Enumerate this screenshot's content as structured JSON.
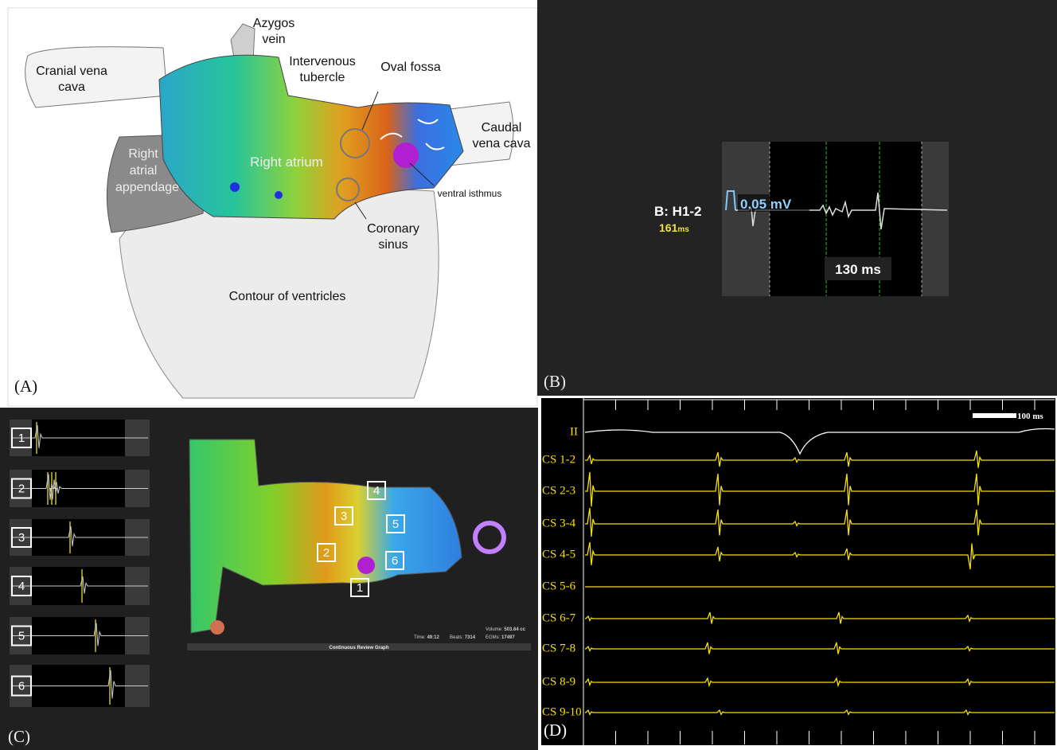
{
  "panel_a": {
    "label": "(A)",
    "annotations": {
      "azygos_vein": [
        "Azygos",
        "vein"
      ],
      "cranial_vena_cava": [
        "Cranial vena",
        "cava"
      ],
      "intervenous_tubercle": [
        "Intervenous",
        "tubercle"
      ],
      "oval_fossa": [
        "Oval fossa"
      ],
      "caudal_vena_cava": [
        "Caudal",
        "vena cava"
      ],
      "right_atrium": [
        "Right atrium"
      ],
      "right_atrial_appendage": [
        "Right",
        "atrial",
        "appendage"
      ],
      "ventral_isthmus": [
        "ventral isthmus"
      ],
      "coronary_sinus": [
        "Coronary",
        "sinus"
      ],
      "contour_of_ventricles": [
        "Contour of ventricles"
      ]
    }
  },
  "panel_b": {
    "label": "(B)",
    "channel": "B: H1-2",
    "cycle_value": "161",
    "cycle_unit": "ms",
    "amplitude": "0.05 mV",
    "interval": "130 ms"
  },
  "panel_c": {
    "label": "(C)",
    "strip_numbers": [
      "1",
      "2",
      "3",
      "4",
      "5",
      "6"
    ],
    "map_numbers": [
      "1",
      "2",
      "3",
      "4",
      "5",
      "6"
    ],
    "stats": {
      "time_label": "Time:",
      "time": "49:12",
      "beats_label": "Beats:",
      "beats": "7314",
      "egms_label": "EGMs:",
      "egms": "17497",
      "volume_label": "Volume:",
      "volume": "503.64 cc"
    },
    "footer": "Continuous Review Graph"
  },
  "panel_d": {
    "label": "(D)",
    "scale": "100 ms",
    "channels": [
      "II",
      "CS 1-2",
      "CS 2-3",
      "CS 3-4",
      "CS 4-5",
      "CS 5-6",
      "CS 6-7",
      "CS 7-8",
      "CS 8-9",
      "CS 9-10"
    ]
  }
}
